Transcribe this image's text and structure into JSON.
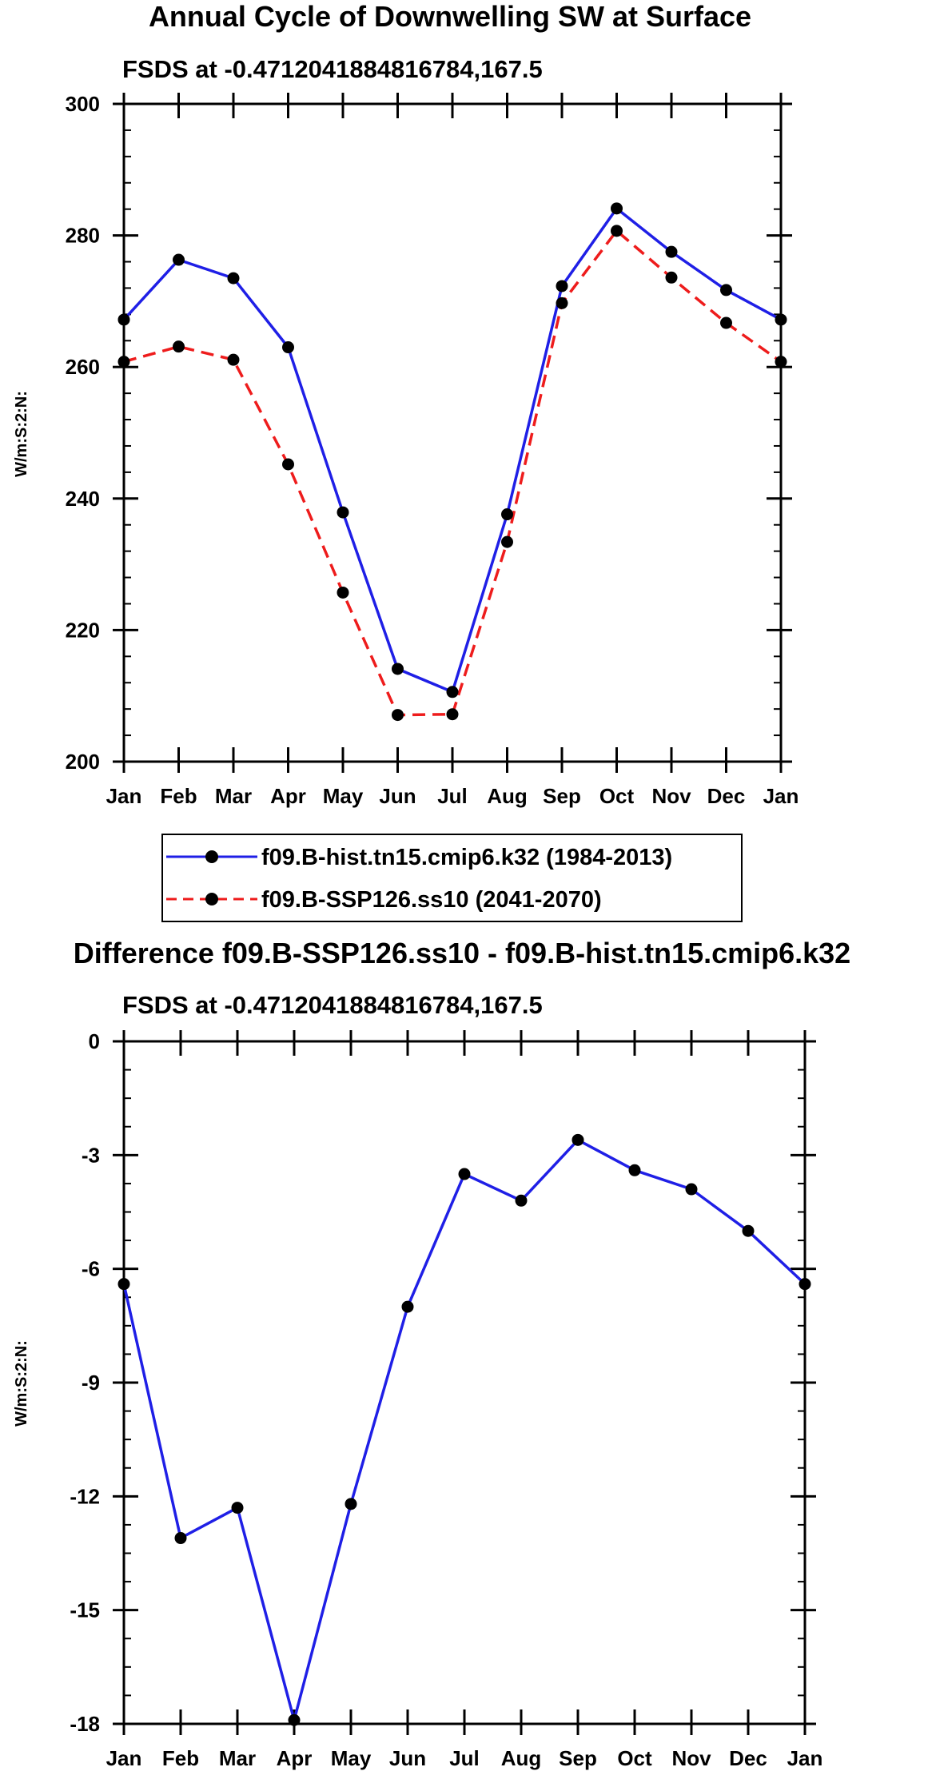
{
  "chart_data": [
    {
      "type": "line",
      "title": "Annual Cycle of Downwelling SW at Surface",
      "subtitle": "FSDS at -0.4712041884816784,167.5",
      "xlabel": "",
      "ylabel": "W/m:S:2:N:",
      "categories": [
        "Jan",
        "Feb",
        "Mar",
        "Apr",
        "May",
        "Jun",
        "Jul",
        "Aug",
        "Sep",
        "Oct",
        "Nov",
        "Dec",
        "Jan"
      ],
      "ylim": [
        200,
        300
      ],
      "yticks": [
        200,
        220,
        240,
        260,
        280,
        300
      ],
      "ytick_labels": [
        "200",
        "220",
        "240",
        "260",
        "280",
        "300"
      ],
      "series": [
        {
          "name": "f09.B-hist.tn15.cmip6.k32 (1984-2013)",
          "color": "#1f1fe6",
          "dash": "solid",
          "values": [
            267.2,
            276.3,
            273.5,
            263.0,
            237.9,
            214.1,
            210.6,
            237.6,
            272.3,
            284.1,
            277.5,
            271.7,
            267.2
          ]
        },
        {
          "name": "f09.B-SSP126.ss10 (2041-2070)",
          "color": "#ee1c1c",
          "dash": "dashed",
          "values": [
            260.8,
            263.1,
            261.1,
            245.2,
            225.7,
            207.1,
            207.2,
            233.4,
            269.7,
            280.7,
            273.6,
            266.7,
            260.8
          ]
        }
      ],
      "legend": {
        "position": "bottom"
      }
    },
    {
      "type": "line",
      "title": "Difference f09.B-SSP126.ss10 - f09.B-hist.tn15.cmip6.k32",
      "subtitle": "FSDS at -0.4712041884816784,167.5",
      "xlabel": "",
      "ylabel": "W/m:S:2:N:",
      "categories": [
        "Jan",
        "Feb",
        "Mar",
        "Apr",
        "May",
        "Jun",
        "Jul",
        "Aug",
        "Sep",
        "Oct",
        "Nov",
        "Dec",
        "Jan"
      ],
      "ylim": [
        -18,
        0
      ],
      "yticks": [
        -18,
        -15,
        -12,
        -9,
        -6,
        -3,
        0
      ],
      "ytick_labels": [
        "-18",
        "-15",
        "-12",
        "-9",
        "-6",
        "-3",
        "0"
      ],
      "series": [
        {
          "name": "Difference",
          "color": "#1f1fe6",
          "dash": "solid",
          "values": [
            -6.4,
            -13.1,
            -12.3,
            -17.9,
            -12.2,
            -7.0,
            -3.5,
            -4.2,
            -2.6,
            -3.4,
            -3.9,
            -5.0,
            -6.4
          ]
        }
      ]
    }
  ]
}
